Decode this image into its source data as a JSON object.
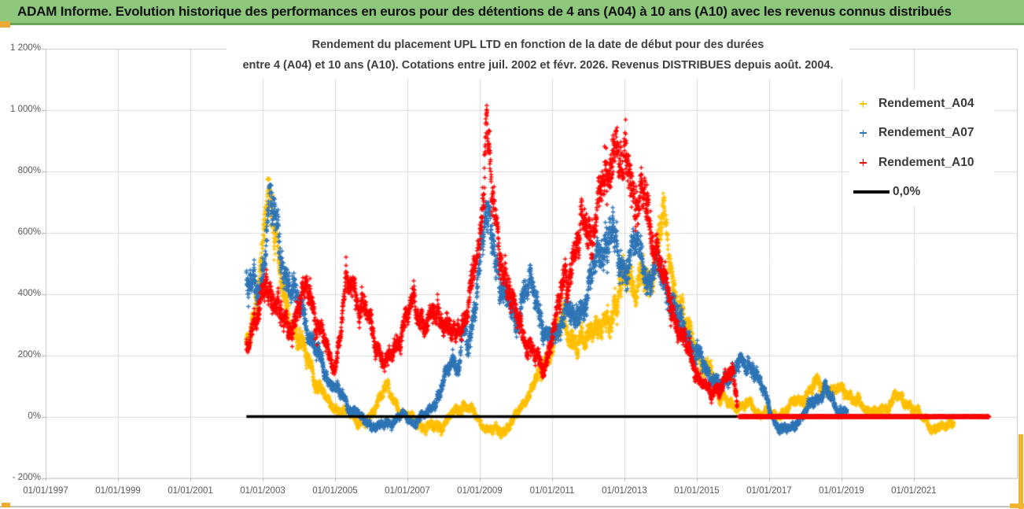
{
  "banner": {
    "title": "ADAM Informe. Evolution historique des performances en euros pour des détentions de 4 ans (A04) à 10 ans (A10) avec les revenus connus distribués"
  },
  "chart_data": {
    "type": "scatter",
    "title_lines": [
      "Rendement du placement UPL LTD en fonction de la date de début pour des durées",
      "entre 4 (A04) et 10 ans (A10). Cotations entre juil. 2002 et févr. 2026. Revenus DISTRIBUES depuis août. 2004."
    ],
    "x_axis": {
      "tick_labels": [
        "01/01/1997",
        "01/01/1999",
        "01/01/2001",
        "01/01/2003",
        "01/01/2005",
        "01/01/2007",
        "01/01/2009",
        "01/01/2011",
        "01/01/2013",
        "01/01/2015",
        "01/01/2017",
        "01/01/2019",
        "01/01/2021"
      ],
      "tick_years": [
        1997,
        1999,
        2001,
        2003,
        2005,
        2007,
        2009,
        2011,
        2013,
        2015,
        2017,
        2019,
        2021
      ],
      "min_year": 1997,
      "max_year": 2023.85,
      "grid": true
    },
    "y_axis": {
      "tick_labels": [
        "1 200%",
        "1 000%",
        "800%",
        "600%",
        "400%",
        "200%",
        "0%",
        "- 200%"
      ],
      "tick_values": [
        1200,
        1000,
        800,
        600,
        400,
        200,
        0,
        -200
      ],
      "min": -200,
      "max": 1200,
      "unit": "%"
    },
    "legend_position": "inside-top-right",
    "series": [
      {
        "name": "Rendement_A04",
        "color": "#FFC000",
        "marker": "plus",
        "points": [
          [
            2002.55,
            250
          ],
          [
            2002.7,
            300
          ],
          [
            2002.85,
            380
          ],
          [
            2003.0,
            550
          ],
          [
            2003.15,
            760
          ],
          [
            2003.3,
            690
          ],
          [
            2003.45,
            500
          ],
          [
            2003.6,
            390
          ],
          [
            2003.8,
            310
          ],
          [
            2004.0,
            265
          ],
          [
            2004.2,
            210
          ],
          [
            2004.4,
            140
          ],
          [
            2004.6,
            90
          ],
          [
            2004.8,
            50
          ],
          [
            2005.0,
            30
          ],
          [
            2005.2,
            15
          ],
          [
            2005.4,
            5
          ],
          [
            2005.6,
            -10
          ],
          [
            2005.8,
            -25
          ],
          [
            2006.0,
            0
          ],
          [
            2006.2,
            60
          ],
          [
            2006.4,
            95
          ],
          [
            2006.6,
            55
          ],
          [
            2006.8,
            25
          ],
          [
            2007.0,
            5
          ],
          [
            2007.2,
            -15
          ],
          [
            2007.4,
            -30
          ],
          [
            2007.6,
            -40
          ],
          [
            2007.8,
            -35
          ],
          [
            2008.0,
            -25
          ],
          [
            2008.2,
            0
          ],
          [
            2008.4,
            25
          ],
          [
            2008.6,
            45
          ],
          [
            2008.8,
            15
          ],
          [
            2009.0,
            -15
          ],
          [
            2009.3,
            -40
          ],
          [
            2009.6,
            -50
          ],
          [
            2009.9,
            -20
          ],
          [
            2010.1,
            20
          ],
          [
            2010.3,
            60
          ],
          [
            2010.5,
            100
          ],
          [
            2010.7,
            140
          ],
          [
            2010.9,
            200
          ],
          [
            2011.1,
            260
          ],
          [
            2011.3,
            320
          ],
          [
            2011.5,
            280
          ],
          [
            2011.7,
            230
          ],
          [
            2011.9,
            260
          ],
          [
            2012.1,
            300
          ],
          [
            2012.3,
            270
          ],
          [
            2012.5,
            310
          ],
          [
            2012.7,
            360
          ],
          [
            2012.9,
            420
          ],
          [
            2013.1,
            460
          ],
          [
            2013.3,
            430
          ],
          [
            2013.5,
            470
          ],
          [
            2013.7,
            430
          ],
          [
            2013.9,
            540
          ],
          [
            2014.05,
            650
          ],
          [
            2014.2,
            560
          ],
          [
            2014.4,
            430
          ],
          [
            2014.6,
            340
          ],
          [
            2014.8,
            270
          ],
          [
            2015.0,
            210
          ],
          [
            2015.2,
            140
          ],
          [
            2015.4,
            150
          ],
          [
            2015.6,
            80
          ],
          [
            2015.8,
            50
          ],
          [
            2016.0,
            30
          ],
          [
            2016.3,
            45
          ],
          [
            2016.6,
            20
          ],
          [
            2016.9,
            15
          ],
          [
            2017.2,
            5
          ],
          [
            2017.5,
            25
          ],
          [
            2017.8,
            50
          ],
          [
            2018.0,
            70
          ],
          [
            2018.2,
            95
          ],
          [
            2018.4,
            115
          ],
          [
            2018.6,
            95
          ],
          [
            2018.8,
            75
          ],
          [
            2019.0,
            95
          ],
          [
            2019.2,
            70
          ],
          [
            2019.4,
            45
          ],
          [
            2019.6,
            35
          ],
          [
            2019.8,
            20
          ],
          [
            2020.0,
            10
          ],
          [
            2020.3,
            45
          ],
          [
            2020.5,
            75
          ],
          [
            2020.7,
            55
          ],
          [
            2020.9,
            35
          ],
          [
            2021.1,
            10
          ],
          [
            2021.3,
            -15
          ],
          [
            2021.6,
            -40
          ],
          [
            2021.9,
            -30
          ],
          [
            2022.1,
            -15
          ]
        ]
      },
      {
        "name": "Rendement_A07",
        "color": "#2E75B6",
        "marker": "plus",
        "points": [
          [
            2002.55,
            470
          ],
          [
            2002.7,
            420
          ],
          [
            2002.9,
            380
          ],
          [
            2003.05,
            520
          ],
          [
            2003.2,
            740
          ],
          [
            2003.35,
            640
          ],
          [
            2003.5,
            540
          ],
          [
            2003.65,
            470
          ],
          [
            2003.8,
            420
          ],
          [
            2004.0,
            360
          ],
          [
            2004.2,
            300
          ],
          [
            2004.4,
            230
          ],
          [
            2004.6,
            170
          ],
          [
            2004.8,
            130
          ],
          [
            2005.0,
            90
          ],
          [
            2005.2,
            60
          ],
          [
            2005.4,
            30
          ],
          [
            2005.6,
            10
          ],
          [
            2005.8,
            -10
          ],
          [
            2006.0,
            -25
          ],
          [
            2006.3,
            -35
          ],
          [
            2006.6,
            -15
          ],
          [
            2006.9,
            5
          ],
          [
            2007.2,
            -20
          ],
          [
            2007.5,
            0
          ],
          [
            2007.7,
            40
          ],
          [
            2007.9,
            80
          ],
          [
            2008.1,
            140
          ],
          [
            2008.25,
            200
          ],
          [
            2008.4,
            160
          ],
          [
            2008.55,
            280
          ],
          [
            2008.7,
            220
          ],
          [
            2008.85,
            350
          ],
          [
            2009.0,
            520
          ],
          [
            2009.15,
            650
          ],
          [
            2009.3,
            600
          ],
          [
            2009.45,
            500
          ],
          [
            2009.6,
            430
          ],
          [
            2009.8,
            360
          ],
          [
            2010.0,
            320
          ],
          [
            2010.2,
            390
          ],
          [
            2010.4,
            440
          ],
          [
            2010.6,
            360
          ],
          [
            2010.8,
            280
          ],
          [
            2011.0,
            230
          ],
          [
            2011.2,
            290
          ],
          [
            2011.4,
            350
          ],
          [
            2011.6,
            300
          ],
          [
            2011.8,
            350
          ],
          [
            2012.0,
            420
          ],
          [
            2012.2,
            500
          ],
          [
            2012.4,
            560
          ],
          [
            2012.6,
            620
          ],
          [
            2012.75,
            550
          ],
          [
            2012.9,
            480
          ],
          [
            2013.1,
            530
          ],
          [
            2013.3,
            560
          ],
          [
            2013.5,
            490
          ],
          [
            2013.7,
            450
          ],
          [
            2013.9,
            500
          ],
          [
            2014.1,
            440
          ],
          [
            2014.3,
            370
          ],
          [
            2014.5,
            310
          ],
          [
            2014.7,
            270
          ],
          [
            2014.9,
            230
          ],
          [
            2015.1,
            190
          ],
          [
            2015.3,
            150
          ],
          [
            2015.5,
            120
          ],
          [
            2015.7,
            90
          ],
          [
            2015.9,
            130
          ],
          [
            2016.1,
            170
          ],
          [
            2016.35,
            150
          ],
          [
            2016.55,
            170
          ],
          [
            2016.75,
            110
          ],
          [
            2016.95,
            40
          ],
          [
            2017.15,
            -15
          ],
          [
            2017.35,
            -45
          ],
          [
            2017.55,
            -35
          ],
          [
            2017.75,
            -20
          ],
          [
            2017.95,
            0
          ],
          [
            2018.15,
            35
          ],
          [
            2018.35,
            65
          ],
          [
            2018.55,
            90
          ],
          [
            2018.7,
            65
          ],
          [
            2018.85,
            40
          ],
          [
            2019.0,
            25
          ],
          [
            2019.15,
            15
          ]
        ]
      },
      {
        "name": "Rendement_A10",
        "color": "#FF0000",
        "marker": "plus",
        "flat_zero_from": 2016.17,
        "flat_zero_to": 2023.08,
        "points": [
          [
            2002.55,
            230
          ],
          [
            2002.7,
            290
          ],
          [
            2002.9,
            340
          ],
          [
            2003.1,
            430
          ],
          [
            2003.3,
            390
          ],
          [
            2003.5,
            330
          ],
          [
            2003.7,
            285
          ],
          [
            2003.9,
            330
          ],
          [
            2004.1,
            390
          ],
          [
            2004.25,
            420
          ],
          [
            2004.4,
            360
          ],
          [
            2004.55,
            300
          ],
          [
            2004.7,
            240
          ],
          [
            2004.85,
            185
          ],
          [
            2005.0,
            155
          ],
          [
            2005.15,
            260
          ],
          [
            2005.3,
            420
          ],
          [
            2005.45,
            440
          ],
          [
            2005.6,
            400
          ],
          [
            2005.8,
            350
          ],
          [
            2006.0,
            285
          ],
          [
            2006.2,
            225
          ],
          [
            2006.4,
            165
          ],
          [
            2006.6,
            210
          ],
          [
            2006.8,
            280
          ],
          [
            2007.0,
            345
          ],
          [
            2007.15,
            390
          ],
          [
            2007.3,
            340
          ],
          [
            2007.5,
            290
          ],
          [
            2007.7,
            320
          ],
          [
            2007.9,
            350
          ],
          [
            2008.1,
            300
          ],
          [
            2008.3,
            255
          ],
          [
            2008.5,
            300
          ],
          [
            2008.7,
            380
          ],
          [
            2008.9,
            490
          ],
          [
            2009.05,
            620
          ],
          [
            2009.18,
            1000
          ],
          [
            2009.3,
            800
          ],
          [
            2009.42,
            640
          ],
          [
            2009.55,
            530
          ],
          [
            2009.7,
            450
          ],
          [
            2009.85,
            390
          ],
          [
            2010.0,
            330
          ],
          [
            2010.2,
            280
          ],
          [
            2010.4,
            230
          ],
          [
            2010.6,
            180
          ],
          [
            2010.75,
            150
          ],
          [
            2010.9,
            210
          ],
          [
            2011.1,
            310
          ],
          [
            2011.3,
            430
          ],
          [
            2011.5,
            490
          ],
          [
            2011.7,
            560
          ],
          [
            2011.9,
            650
          ],
          [
            2012.1,
            600
          ],
          [
            2012.3,
            690
          ],
          [
            2012.5,
            770
          ],
          [
            2012.65,
            860
          ],
          [
            2012.8,
            900
          ],
          [
            2012.95,
            810
          ],
          [
            2013.1,
            860
          ],
          [
            2013.25,
            750
          ],
          [
            2013.4,
            680
          ],
          [
            2013.55,
            720
          ],
          [
            2013.7,
            630
          ],
          [
            2013.85,
            560
          ],
          [
            2014.0,
            490
          ],
          [
            2014.2,
            400
          ],
          [
            2014.4,
            320
          ],
          [
            2014.6,
            255
          ],
          [
            2014.8,
            200
          ],
          [
            2015.0,
            150
          ],
          [
            2015.2,
            105
          ],
          [
            2015.4,
            75
          ],
          [
            2015.6,
            95
          ],
          [
            2015.8,
            120
          ],
          [
            2016.0,
            130
          ],
          [
            2016.12,
            50
          ]
        ]
      },
      {
        "name": "0,0%",
        "color": "#000000",
        "type": "line",
        "points": [
          [
            2002.55,
            0
          ],
          [
            2023.08,
            0
          ]
        ]
      }
    ]
  }
}
